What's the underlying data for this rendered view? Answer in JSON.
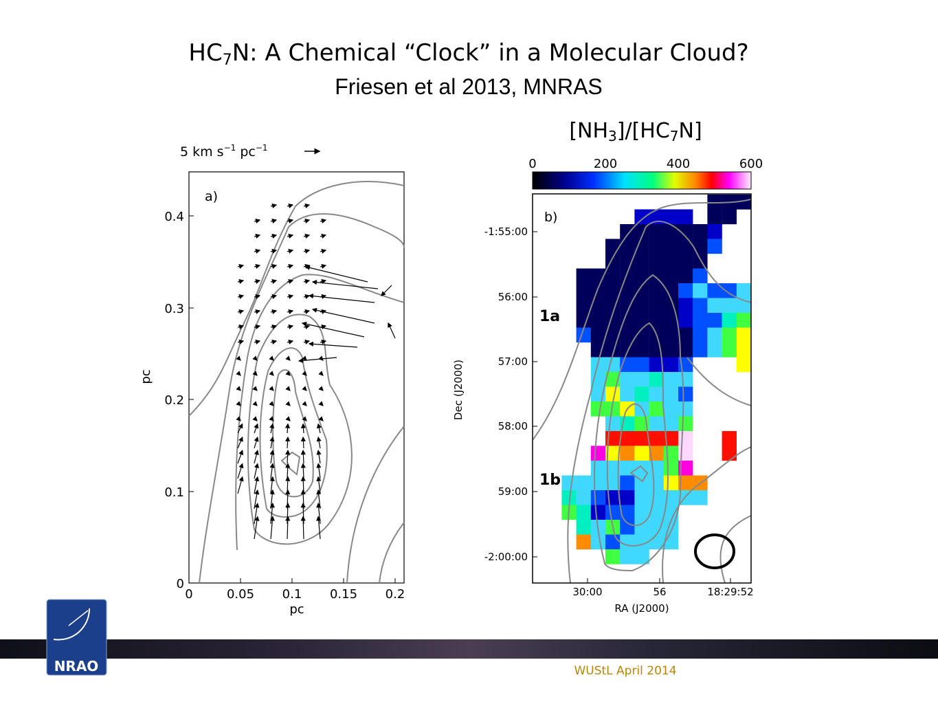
{
  "header": {
    "title": [
      "HC",
      "7",
      "N:  A Chemical “Clock” in a Molecular Cloud?"
    ],
    "subtitle": "Friesen et al 2013, MNRAS"
  },
  "panel_a": {
    "label": "a)",
    "scale": [
      "5 km s",
      "−1",
      "  pc",
      "−1"
    ],
    "yticks": [
      "0.4",
      "0.3",
      "0.2",
      "0.1",
      "0"
    ],
    "xticks": [
      "0",
      "0.05",
      "0.1",
      "0.15",
      "0.2"
    ],
    "xlabel": "pc",
    "ylabel": "pc"
  },
  "panel_b": {
    "colorbar_title": [
      "[NH",
      "3",
      "]/[HC",
      "7",
      "N]"
    ],
    "colorbar_ticks": [
      "0",
      "200",
      "400",
      "600"
    ],
    "label": "b)",
    "regions": [
      "1a",
      "1b"
    ],
    "yticks": [
      "-1:55:00",
      "56:00",
      "57:00",
      "58:00",
      "59:00",
      "-2:00:00"
    ],
    "xticks": [
      "30:00",
      "56",
      "18:29:52"
    ],
    "xlabel": "RA (J2000)",
    "ylabel": "Dec (J2000)"
  },
  "footer": {
    "logo": "NRAO",
    "text": "WUStL April 2014"
  }
}
